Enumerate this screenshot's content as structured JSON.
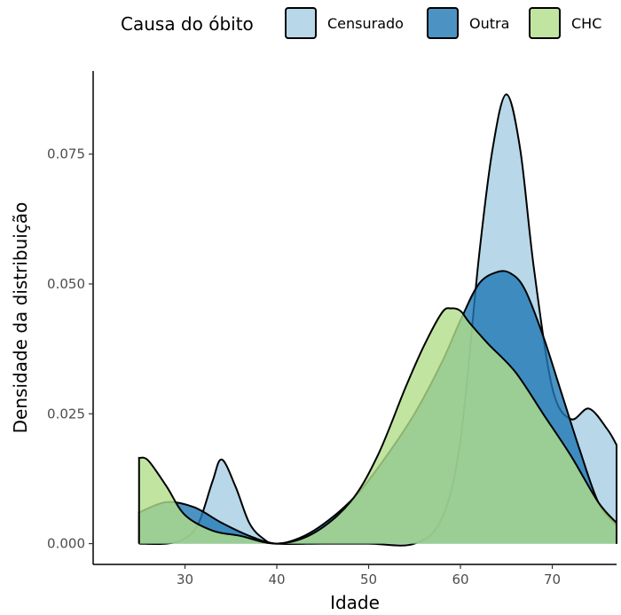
{
  "chart_data": {
    "type": "area",
    "title": "",
    "xlabel": "Idade",
    "ylabel": "Densidade da distribuição",
    "xlim": [
      20,
      77
    ],
    "ylim": [
      -0.004,
      0.091
    ],
    "x_ticks": [
      30,
      40,
      50,
      60,
      70
    ],
    "x_tick_labels": [
      "30",
      "40",
      "50",
      "60",
      "70"
    ],
    "y_ticks": [
      0,
      0.025,
      0.05,
      0.075
    ],
    "y_tick_labels": [
      "0.000",
      "0.025",
      "0.050",
      "0.075"
    ],
    "grid": false,
    "legend": {
      "title": "Causa do óbito",
      "placement": "top",
      "entries": [
        "Censurado",
        "Outra",
        "CHC"
      ]
    },
    "series": [
      {
        "name": "Censurado",
        "color": "#a6cee3",
        "x": [
          25,
          28,
          30,
          31.5,
          33,
          34,
          35.5,
          37,
          38.5,
          40,
          45,
          50,
          55,
          58,
          60,
          62,
          63.5,
          65,
          66.5,
          68,
          70,
          72,
          74,
          76,
          77
        ],
        "y": [
          0.0,
          0.0,
          0.001,
          0.004,
          0.012,
          0.0162,
          0.011,
          0.004,
          0.001,
          0.0,
          0.0,
          0.0,
          0.0,
          0.005,
          0.02,
          0.055,
          0.076,
          0.0865,
          0.076,
          0.053,
          0.03,
          0.024,
          0.026,
          0.022,
          0.019
        ]
      },
      {
        "name": "Outra",
        "color": "#1f78b4",
        "x": [
          25,
          28,
          31,
          34,
          37,
          40,
          43,
          46,
          49,
          52,
          55,
          58,
          60,
          62,
          64,
          65.5,
          67,
          69,
          71,
          73,
          75,
          77
        ],
        "y": [
          0.006,
          0.008,
          0.007,
          0.004,
          0.0015,
          0.0,
          0.0015,
          0.005,
          0.01,
          0.017,
          0.025,
          0.035,
          0.043,
          0.05,
          0.0523,
          0.052,
          0.049,
          0.04,
          0.029,
          0.018,
          0.008,
          0.0035
        ]
      },
      {
        "name": "CHC",
        "color": "#b2df8a",
        "x": [
          25,
          26,
          28,
          30,
          33,
          36,
          40,
          44,
          48,
          51,
          54,
          56,
          58,
          59,
          60,
          61,
          63,
          66,
          69,
          72,
          75,
          77
        ],
        "y": [
          0.0165,
          0.016,
          0.011,
          0.0055,
          0.0025,
          0.0015,
          0.0,
          0.002,
          0.008,
          0.017,
          0.03,
          0.038,
          0.0445,
          0.0453,
          0.0448,
          0.0425,
          0.0385,
          0.033,
          0.025,
          0.017,
          0.008,
          0.004
        ]
      }
    ]
  }
}
